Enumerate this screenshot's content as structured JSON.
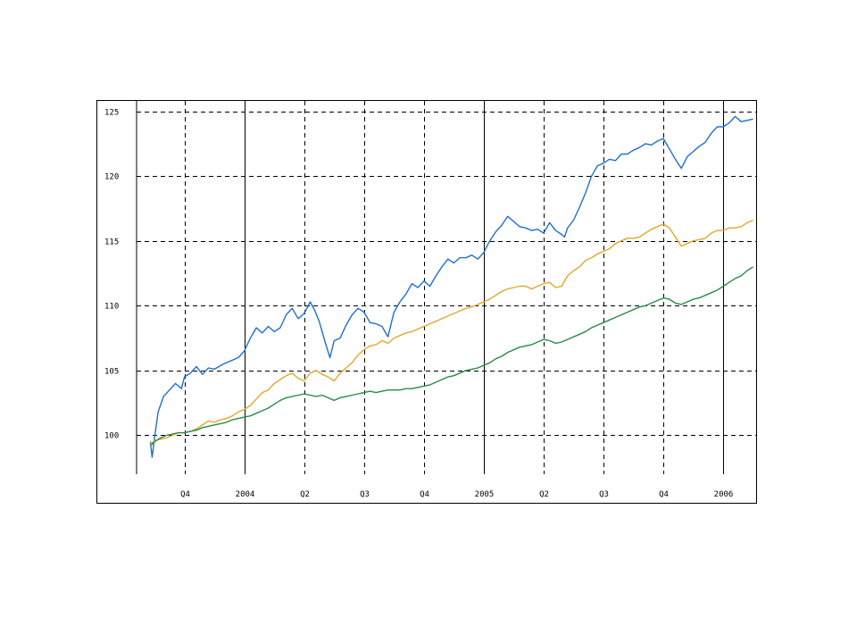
{
  "chart_data": {
    "type": "line",
    "title": "",
    "xlabel": "",
    "ylabel": "",
    "ylim": [
      97,
      125.8
    ],
    "xlim": [
      0,
      103.5
    ],
    "yticks": [
      100,
      105,
      110,
      115,
      120,
      125
    ],
    "ytick_labels": [
      "100",
      "105",
      "110",
      "115",
      "120",
      "125"
    ],
    "xticks": [
      {
        "label": "Q4",
        "pos": 8,
        "major": false
      },
      {
        "label": "2004",
        "pos": 18,
        "major": true
      },
      {
        "label": "Q2",
        "pos": 28,
        "major": false
      },
      {
        "label": "Q3",
        "pos": 38,
        "major": false
      },
      {
        "label": "Q4",
        "pos": 48,
        "major": false
      },
      {
        "label": "2005",
        "pos": 58,
        "major": true
      },
      {
        "label": "Q2",
        "pos": 68,
        "major": false
      },
      {
        "label": "Q3",
        "pos": 78,
        "major": false
      },
      {
        "label": "Q4",
        "pos": 88,
        "major": false
      },
      {
        "label": "2006",
        "pos": 98,
        "major": true
      }
    ],
    "grid": true,
    "series": [
      {
        "color": "#1f6fd1",
        "points": [
          [
            2.3,
            99.5
          ],
          [
            2.6,
            98.3
          ],
          [
            3,
            99.8
          ],
          [
            3.6,
            101.8
          ],
          [
            4.5,
            103
          ],
          [
            5.5,
            103.5
          ],
          [
            6.5,
            104
          ],
          [
            7.5,
            103.6
          ],
          [
            8,
            104.5
          ],
          [
            9,
            104.8
          ],
          [
            10,
            105.3
          ],
          [
            11,
            104.7
          ],
          [
            12,
            105.2
          ],
          [
            13,
            105.1
          ],
          [
            14.5,
            105.5
          ],
          [
            16,
            105.8
          ],
          [
            17,
            106
          ],
          [
            18,
            106.5
          ],
          [
            19,
            107.5
          ],
          [
            20,
            108.3
          ],
          [
            21,
            107.9
          ],
          [
            22,
            108.4
          ],
          [
            23,
            108
          ],
          [
            24,
            108.3
          ],
          [
            25,
            109.3
          ],
          [
            26,
            109.8
          ],
          [
            27,
            109
          ],
          [
            28,
            109.4
          ],
          [
            29,
            110.3
          ],
          [
            29.8,
            109.6
          ],
          [
            30.5,
            108.8
          ],
          [
            31.5,
            107.2
          ],
          [
            32.3,
            106
          ],
          [
            33,
            107.3
          ],
          [
            34,
            107.5
          ],
          [
            35,
            108.5
          ],
          [
            36,
            109.3
          ],
          [
            37,
            109.8
          ],
          [
            38,
            109.5
          ],
          [
            39,
            108.7
          ],
          [
            40,
            108.6
          ],
          [
            41,
            108.4
          ],
          [
            42,
            107.6
          ],
          [
            43,
            109.5
          ],
          [
            44,
            110.3
          ],
          [
            45,
            110.9
          ],
          [
            46,
            111.7
          ],
          [
            47,
            111.4
          ],
          [
            48,
            111.9
          ],
          [
            49,
            111.5
          ],
          [
            50,
            112.3
          ],
          [
            51,
            113
          ],
          [
            52,
            113.6
          ],
          [
            53,
            113.3
          ],
          [
            54,
            113.7
          ],
          [
            55,
            113.7
          ],
          [
            56,
            113.9
          ],
          [
            57,
            113.6
          ],
          [
            58,
            114.1
          ],
          [
            59,
            115
          ],
          [
            60,
            115.7
          ],
          [
            61,
            116.2
          ],
          [
            62,
            116.9
          ],
          [
            63,
            116.5
          ],
          [
            64,
            116.1
          ],
          [
            65,
            116
          ],
          [
            66,
            115.8
          ],
          [
            67,
            115.9
          ],
          [
            68,
            115.6
          ],
          [
            69,
            116.4
          ],
          [
            70,
            115.8
          ],
          [
            71,
            115.5
          ],
          [
            71.5,
            115.3
          ],
          [
            72,
            116
          ],
          [
            73,
            116.6
          ],
          [
            74,
            117.6
          ],
          [
            75,
            118.7
          ],
          [
            76,
            120
          ],
          [
            77,
            120.8
          ],
          [
            78,
            121
          ],
          [
            79,
            121.3
          ],
          [
            80,
            121.2
          ],
          [
            81,
            121.7
          ],
          [
            82,
            121.7
          ],
          [
            83,
            122
          ],
          [
            84,
            122.2
          ],
          [
            85,
            122.5
          ],
          [
            86,
            122.4
          ],
          [
            87,
            122.7
          ],
          [
            88,
            122.9
          ],
          [
            89,
            122.1
          ],
          [
            90,
            121.3
          ],
          [
            91,
            120.6
          ],
          [
            92,
            121.5
          ],
          [
            93,
            121.9
          ],
          [
            94,
            122.3
          ],
          [
            95,
            122.6
          ],
          [
            96,
            123.3
          ],
          [
            97,
            123.8
          ],
          [
            98,
            123.8
          ],
          [
            99,
            124.1
          ],
          [
            100,
            124.6
          ],
          [
            101,
            124.2
          ],
          [
            102,
            124.3
          ],
          [
            103,
            124.4
          ]
        ]
      },
      {
        "color": "#e0a82a",
        "points": [
          [
            2.3,
            99.3
          ],
          [
            3,
            99.6
          ],
          [
            4,
            99.7
          ],
          [
            5,
            99.8
          ],
          [
            6,
            100
          ],
          [
            7,
            100.2
          ],
          [
            8,
            100.2
          ],
          [
            9,
            100.3
          ],
          [
            10,
            100.5
          ],
          [
            11,
            100.8
          ],
          [
            12,
            101.1
          ],
          [
            13,
            101
          ],
          [
            14,
            101.2
          ],
          [
            15,
            101.3
          ],
          [
            16,
            101.5
          ],
          [
            17,
            101.8
          ],
          [
            18,
            102
          ],
          [
            19,
            102.3
          ],
          [
            20,
            102.8
          ],
          [
            21,
            103.3
          ],
          [
            22,
            103.5
          ],
          [
            23,
            104
          ],
          [
            24,
            104.3
          ],
          [
            25,
            104.6
          ],
          [
            26,
            104.8
          ],
          [
            27,
            104.4
          ],
          [
            28,
            104.2
          ],
          [
            29,
            104.8
          ],
          [
            30,
            105
          ],
          [
            31,
            104.7
          ],
          [
            32,
            104.5
          ],
          [
            33,
            104.2
          ],
          [
            34,
            104.8
          ],
          [
            35,
            105.2
          ],
          [
            36,
            105.6
          ],
          [
            37,
            106.2
          ],
          [
            38,
            106.6
          ],
          [
            39,
            106.9
          ],
          [
            40,
            107
          ],
          [
            41,
            107.3
          ],
          [
            42,
            107.1
          ],
          [
            43,
            107.5
          ],
          [
            44,
            107.7
          ],
          [
            45,
            107.9
          ],
          [
            46,
            108
          ],
          [
            47,
            108.2
          ],
          [
            48,
            108.4
          ],
          [
            49,
            108.6
          ],
          [
            50,
            108.8
          ],
          [
            51,
            109
          ],
          [
            52,
            109.2
          ],
          [
            53,
            109.4
          ],
          [
            54,
            109.6
          ],
          [
            55,
            109.8
          ],
          [
            56,
            109.9
          ],
          [
            57,
            110.1
          ],
          [
            58,
            110.3
          ],
          [
            59,
            110.5
          ],
          [
            60,
            110.8
          ],
          [
            61,
            111.1
          ],
          [
            62,
            111.3
          ],
          [
            63,
            111.4
          ],
          [
            64,
            111.5
          ],
          [
            65,
            111.5
          ],
          [
            66,
            111.3
          ],
          [
            67,
            111.5
          ],
          [
            68,
            111.7
          ],
          [
            69,
            111.8
          ],
          [
            70,
            111.4
          ],
          [
            71,
            111.5
          ],
          [
            72,
            112.3
          ],
          [
            73,
            112.7
          ],
          [
            74,
            113
          ],
          [
            75,
            113.5
          ],
          [
            76,
            113.7
          ],
          [
            77,
            114
          ],
          [
            78,
            114.2
          ],
          [
            79,
            114.4
          ],
          [
            80,
            114.8
          ],
          [
            81,
            115
          ],
          [
            82,
            115.2
          ],
          [
            83,
            115.2
          ],
          [
            84,
            115.3
          ],
          [
            85,
            115.6
          ],
          [
            86,
            115.9
          ],
          [
            87,
            116.1
          ],
          [
            88,
            116.3
          ],
          [
            89,
            116
          ],
          [
            90,
            115.3
          ],
          [
            91,
            114.6
          ],
          [
            92,
            114.8
          ],
          [
            93,
            115
          ],
          [
            94,
            115.1
          ],
          [
            95,
            115.2
          ],
          [
            96,
            115.6
          ],
          [
            97,
            115.8
          ],
          [
            98,
            115.8
          ],
          [
            99,
            116
          ],
          [
            100,
            116
          ],
          [
            101,
            116.1
          ],
          [
            102,
            116.4
          ],
          [
            103,
            116.6
          ]
        ]
      },
      {
        "color": "#2a8a4a",
        "points": [
          [
            2.3,
            99.2
          ],
          [
            3,
            99.5
          ],
          [
            4,
            99.8
          ],
          [
            5,
            100
          ],
          [
            6,
            100.1
          ],
          [
            7,
            100.2
          ],
          [
            8,
            100.2
          ],
          [
            9,
            100.3
          ],
          [
            10,
            100.4
          ],
          [
            11,
            100.6
          ],
          [
            12,
            100.7
          ],
          [
            13,
            100.8
          ],
          [
            14,
            100.9
          ],
          [
            15,
            101
          ],
          [
            16,
            101.2
          ],
          [
            17,
            101.3
          ],
          [
            18,
            101.4
          ],
          [
            19,
            101.5
          ],
          [
            20,
            101.7
          ],
          [
            21,
            101.9
          ],
          [
            22,
            102.1
          ],
          [
            23,
            102.4
          ],
          [
            24,
            102.7
          ],
          [
            25,
            102.9
          ],
          [
            26,
            103
          ],
          [
            27,
            103.1
          ],
          [
            28,
            103.2
          ],
          [
            29,
            103.1
          ],
          [
            30,
            103
          ],
          [
            31,
            103.1
          ],
          [
            32,
            102.9
          ],
          [
            33,
            102.7
          ],
          [
            34,
            102.9
          ],
          [
            35,
            103
          ],
          [
            36,
            103.1
          ],
          [
            37,
            103.2
          ],
          [
            38,
            103.3
          ],
          [
            39,
            103.4
          ],
          [
            40,
            103.3
          ],
          [
            41,
            103.4
          ],
          [
            42,
            103.5
          ],
          [
            43,
            103.5
          ],
          [
            44,
            103.5
          ],
          [
            45,
            103.6
          ],
          [
            46,
            103.6
          ],
          [
            47,
            103.7
          ],
          [
            48,
            103.8
          ],
          [
            49,
            103.9
          ],
          [
            50,
            104.1
          ],
          [
            51,
            104.3
          ],
          [
            52,
            104.5
          ],
          [
            53,
            104.6
          ],
          [
            54,
            104.8
          ],
          [
            55,
            105
          ],
          [
            56,
            105.1
          ],
          [
            57,
            105.2
          ],
          [
            58,
            105.4
          ],
          [
            59,
            105.6
          ],
          [
            60,
            105.9
          ],
          [
            61,
            106.1
          ],
          [
            62,
            106.4
          ],
          [
            63,
            106.6
          ],
          [
            64,
            106.8
          ],
          [
            65,
            106.9
          ],
          [
            66,
            107
          ],
          [
            67,
            107.2
          ],
          [
            68,
            107.4
          ],
          [
            69,
            107.3
          ],
          [
            70,
            107.1
          ],
          [
            71,
            107.2
          ],
          [
            72,
            107.4
          ],
          [
            73,
            107.6
          ],
          [
            74,
            107.8
          ],
          [
            75,
            108
          ],
          [
            76,
            108.3
          ],
          [
            77,
            108.5
          ],
          [
            78,
            108.7
          ],
          [
            79,
            108.9
          ],
          [
            80,
            109.1
          ],
          [
            81,
            109.3
          ],
          [
            82,
            109.5
          ],
          [
            83,
            109.7
          ],
          [
            84,
            109.9
          ],
          [
            85,
            110
          ],
          [
            86,
            110.2
          ],
          [
            87,
            110.4
          ],
          [
            88,
            110.6
          ],
          [
            89,
            110.5
          ],
          [
            90,
            110.2
          ],
          [
            91,
            110.1
          ],
          [
            92,
            110.3
          ],
          [
            93,
            110.5
          ],
          [
            94,
            110.6
          ],
          [
            95,
            110.8
          ],
          [
            96,
            111
          ],
          [
            97,
            111.2
          ],
          [
            98,
            111.5
          ],
          [
            99,
            111.8
          ],
          [
            100,
            112.1
          ],
          [
            101,
            112.3
          ],
          [
            102,
            112.7
          ],
          [
            103,
            113
          ]
        ]
      }
    ]
  }
}
